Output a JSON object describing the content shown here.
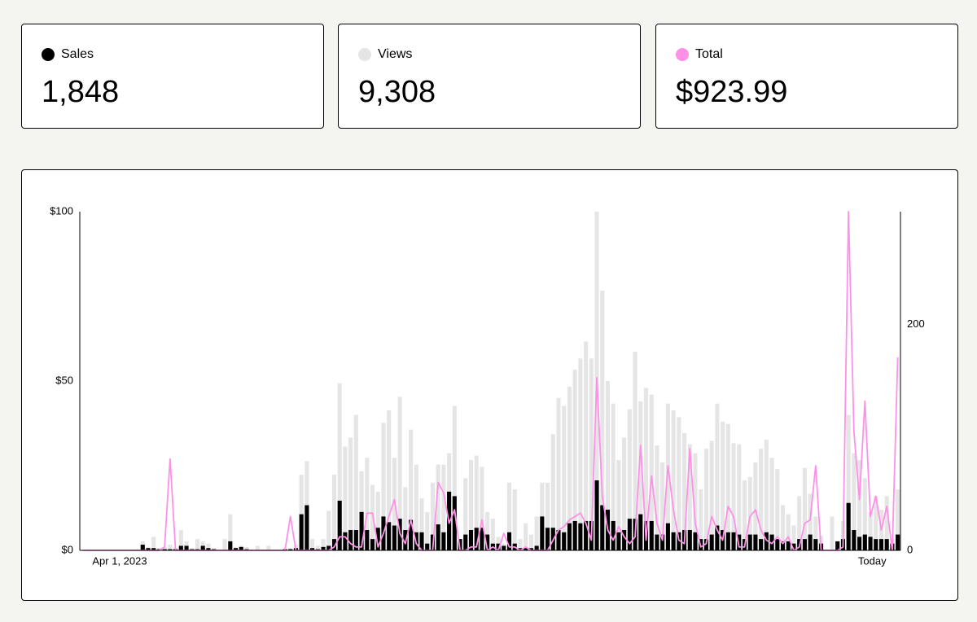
{
  "summary": [
    "1,848",
    "9,308",
    "$923.99"
  ],
  "chart_data": {
    "type": "combo",
    "categories": [
      "Apr 1, 2023",
      null,
      null,
      null,
      null,
      null,
      null,
      null,
      null,
      null,
      null,
      null,
      null,
      null,
      null,
      null,
      null,
      null,
      null,
      null,
      null,
      null,
      null,
      null,
      null,
      null,
      null,
      null,
      null,
      null,
      null,
      null,
      null,
      null,
      null,
      null,
      null,
      null,
      null,
      null,
      null,
      null,
      null,
      null,
      null,
      null,
      null,
      null,
      null,
      null,
      null,
      null,
      null,
      null,
      null,
      null,
      null,
      null,
      null,
      null,
      null,
      null,
      null,
      null,
      null,
      null,
      null,
      null,
      null,
      null,
      null,
      null,
      null,
      null,
      null,
      null,
      null,
      null,
      null,
      null,
      null,
      null,
      null,
      null,
      null,
      null,
      null,
      null,
      null,
      null,
      null,
      null,
      null,
      null,
      null,
      null,
      null,
      null,
      null,
      null,
      null,
      null,
      null,
      null,
      null,
      null,
      null,
      null,
      null,
      null,
      null,
      null,
      null,
      null,
      null,
      null,
      null,
      null,
      null,
      null,
      null,
      null,
      null,
      null,
      null,
      null,
      null,
      null,
      null,
      null,
      null,
      null,
      null,
      null,
      null,
      null,
      null,
      null,
      null,
      null,
      null,
      null,
      null,
      null,
      null,
      null,
      null,
      null,
      null,
      "Today"
    ],
    "series": [
      {
        "name": "Sales",
        "type": "bar",
        "axis": "y2",
        "color": "#000000",
        "values": [
          0,
          0,
          0,
          0,
          0,
          0,
          0,
          0,
          0,
          0,
          0,
          5,
          2,
          2,
          1,
          1,
          1,
          1,
          4,
          4,
          1,
          1,
          4,
          2,
          1,
          0,
          0,
          8,
          2,
          3,
          1,
          0,
          0,
          0,
          0,
          0,
          0,
          1,
          1,
          2,
          32,
          40,
          2,
          1,
          3,
          4,
          10,
          44,
          16,
          18,
          18,
          34,
          18,
          10,
          20,
          30,
          25,
          22,
          28,
          18,
          27,
          16,
          16,
          6,
          14,
          23,
          16,
          52,
          48,
          10,
          14,
          18,
          20,
          20,
          14,
          6,
          6,
          4,
          16,
          6,
          2,
          2,
          2,
          4,
          30,
          20,
          20,
          18,
          16,
          24,
          26,
          24,
          26,
          26,
          62,
          40,
          36,
          26,
          16,
          18,
          28,
          28,
          32,
          26,
          26,
          14,
          14,
          24,
          16,
          16,
          18,
          18,
          16,
          10,
          10,
          14,
          22,
          18,
          16,
          16,
          14,
          10,
          14,
          14,
          10,
          16,
          14,
          10,
          8,
          8,
          6,
          10,
          10,
          14,
          10,
          6,
          0,
          0,
          8,
          10,
          42,
          18,
          12,
          14,
          12,
          10,
          10,
          10,
          6,
          14
        ]
      },
      {
        "name": "Views",
        "type": "bar",
        "axis": "y2",
        "color": "#e5e5e5",
        "values": [
          0,
          0,
          0,
          0,
          0,
          0,
          0,
          0,
          0,
          0,
          0,
          8,
          3,
          12,
          2,
          3,
          5,
          2,
          18,
          8,
          2,
          10,
          8,
          6,
          2,
          0,
          10,
          32,
          3,
          4,
          3,
          0,
          4,
          0,
          4,
          0,
          0,
          0,
          2,
          5,
          67,
          79,
          10,
          4,
          10,
          35,
          67,
          148,
          92,
          100,
          120,
          70,
          82,
          58,
          52,
          113,
          124,
          82,
          136,
          56,
          107,
          76,
          46,
          34,
          60,
          76,
          76,
          86,
          128,
          10,
          64,
          80,
          84,
          74,
          34,
          28,
          12,
          6,
          60,
          54,
          10,
          24,
          14,
          30,
          60,
          60,
          103,
          135,
          128,
          145,
          160,
          170,
          185,
          170,
          300,
          230,
          150,
          130,
          80,
          100,
          125,
          176,
          132,
          144,
          138,
          93,
          78,
          130,
          124,
          118,
          104,
          94,
          86,
          54,
          90,
          97,
          130,
          114,
          112,
          95,
          94,
          62,
          65,
          78,
          90,
          98,
          82,
          72,
          40,
          32,
          22,
          48,
          73,
          50,
          30,
          13,
          0,
          30,
          8,
          26,
          120,
          86,
          80,
          64,
          34,
          48,
          36,
          48,
          10,
          54
        ]
      },
      {
        "name": "Total",
        "type": "line",
        "axis": "y",
        "color": "#ff90e8",
        "values": [
          0,
          0,
          0,
          0,
          0,
          0,
          0,
          0,
          0,
          0,
          0,
          0,
          0,
          0,
          0,
          1,
          27,
          0,
          0,
          0,
          0,
          0,
          0,
          0,
          0,
          0,
          0,
          0,
          0,
          0,
          0,
          0,
          0,
          0,
          0,
          0,
          0,
          0,
          10,
          0,
          0,
          0,
          0,
          0,
          0,
          0,
          1,
          4,
          4,
          2,
          1,
          1,
          11,
          11,
          1,
          5,
          10,
          15,
          5,
          2,
          9,
          2,
          0,
          0,
          0,
          20,
          17,
          8,
          12,
          0,
          0,
          1,
          1,
          9,
          0,
          1,
          0,
          5,
          1,
          1,
          0,
          1,
          0,
          0,
          0,
          0,
          3,
          6,
          7,
          9,
          10,
          11,
          8,
          3,
          51,
          16,
          6,
          3,
          7,
          4,
          2,
          4,
          31,
          3,
          22,
          8,
          3,
          25,
          12,
          3,
          2,
          30,
          8,
          1,
          2,
          10,
          6,
          3,
          13,
          10,
          1,
          1,
          10,
          12,
          6,
          3,
          2,
          4,
          2,
          4,
          0,
          1,
          8,
          9,
          25,
          0,
          0,
          0,
          0,
          1,
          100,
          35,
          15,
          44,
          10,
          16,
          6,
          13,
          0,
          57
        ]
      }
    ],
    "ylim": [
      0,
      100
    ],
    "yticks": [
      {
        "value": 0,
        "label": "$0"
      },
      {
        "value": 50,
        "label": "$50"
      },
      {
        "value": 100,
        "label": "$100"
      }
    ],
    "y2lim": [
      0,
      300
    ],
    "y2ticks": [
      0,
      200
    ],
    "grid": false
  }
}
